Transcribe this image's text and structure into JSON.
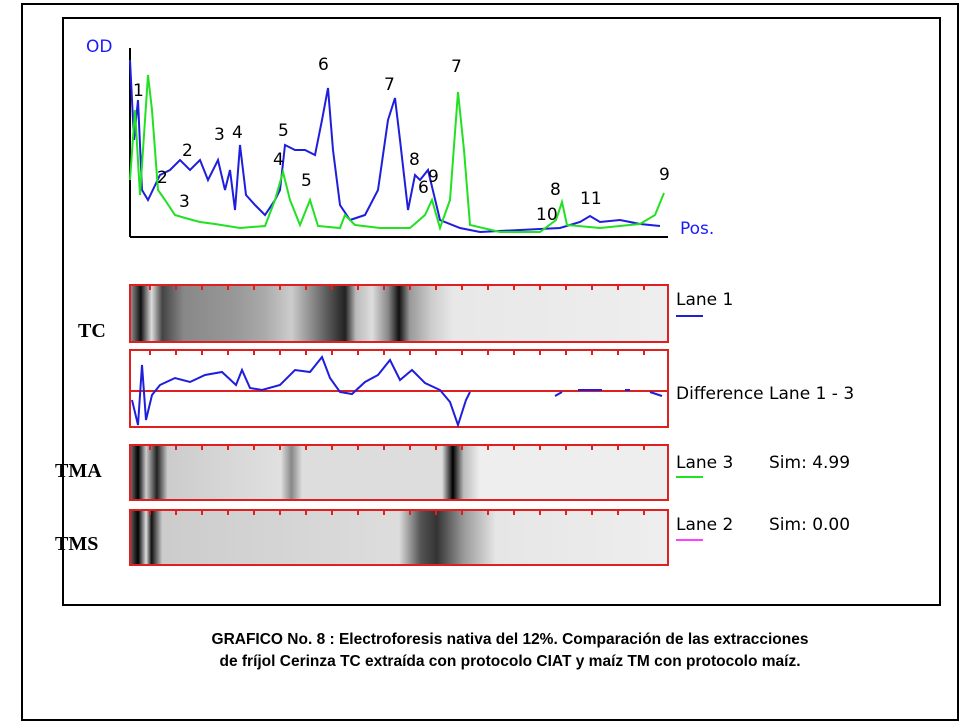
{
  "figure": {
    "y_axis_label": "OD",
    "x_axis_label": "Pos.",
    "peak_labels": [
      "1",
      "2",
      "3",
      "4",
      "5",
      "6",
      "7",
      "8",
      "9",
      "2",
      "3",
      "4",
      "5",
      "7",
      "6",
      "10",
      "8",
      "11",
      "9"
    ],
    "lanes": [
      {
        "tag": "TC",
        "label": "Lane 1"
      },
      {
        "label": "Difference Lane 1 - 3"
      },
      {
        "tag": "TMA",
        "label": "Lane 3",
        "sim": "Sim: 4.99"
      },
      {
        "tag": "TMS",
        "label": "Lane 2",
        "sim": "Sim: 0.00"
      }
    ]
  },
  "caption": [
    "GRAFICO No. 8 : Electroforesis nativa del 12%. Comparación de las extracciones",
    "de  fríjol Cerinza TC extraída con protocolo CIAT y maíz TM con protocolo maíz."
  ]
}
